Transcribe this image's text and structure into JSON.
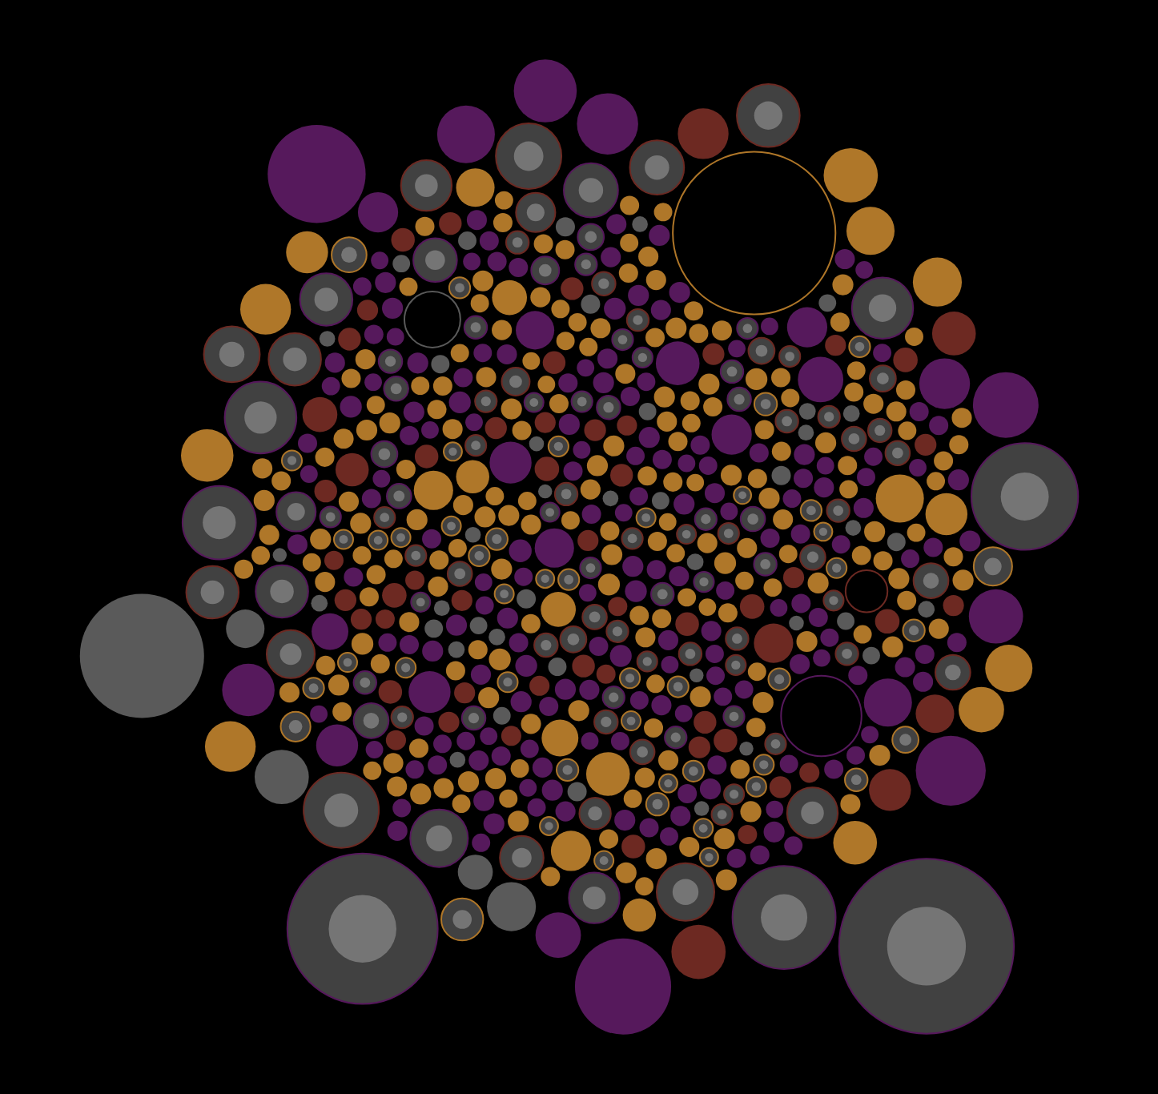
{
  "chart_data": {
    "type": "bubble",
    "tick_labels": false,
    "grid": false,
    "series": [
      {
        "color": "#7b2383",
        "marker": "circle",
        "sizes": [
          22,
          20,
          24,
          21,
          45,
          22,
          25,
          20,
          22,
          24,
          21,
          23,
          20,
          22,
          26,
          21,
          24,
          48,
          20,
          23,
          24,
          22,
          21,
          20,
          23,
          25,
          22,
          21,
          24,
          22,
          20,
          46,
          23,
          22,
          21,
          24,
          20,
          22,
          25,
          21,
          23,
          21,
          22,
          24,
          20,
          22,
          50,
          23,
          21,
          20,
          22,
          24,
          21,
          23,
          22,
          20,
          21,
          24,
          22,
          23,
          25,
          20,
          22,
          21,
          44,
          23,
          22,
          20,
          24,
          21,
          21,
          22,
          24,
          20,
          23,
          21,
          25,
          22,
          20,
          48,
          22,
          23,
          20,
          24,
          21,
          22,
          23,
          21,
          24,
          20,
          20,
          22,
          52,
          21,
          23,
          24,
          20,
          22,
          21,
          23,
          24,
          21,
          22,
          20,
          22,
          23,
          21,
          24,
          46,
          22,
          21,
          20,
          23,
          22,
          24,
          21,
          22,
          20,
          23,
          25,
          42,
          22,
          21,
          24,
          20,
          22,
          23,
          21,
          22,
          24,
          22,
          24,
          20,
          21,
          23,
          55,
          22,
          24,
          20,
          21,
          23,
          21,
          22,
          24,
          20,
          22,
          21,
          23,
          22,
          20,
          20,
          23,
          21,
          22,
          48,
          24,
          20,
          22,
          21,
          23,
          22,
          21,
          24,
          20,
          22,
          23,
          21,
          58,
          24,
          22,
          21,
          22,
          20,
          23,
          24,
          21,
          22,
          20,
          23,
          60,
          62,
          70,
          46,
          75,
          80,
          52,
          66,
          110,
          112,
          72
        ]
      },
      {
        "color": "#f9a93a",
        "marker": "circle",
        "sizes": [
          22,
          24,
          21,
          23,
          22,
          25,
          20,
          24,
          22,
          21,
          23,
          22,
          40,
          24,
          21,
          22,
          23,
          20,
          24,
          22,
          21,
          23,
          22,
          24,
          25,
          21,
          22,
          23,
          20,
          24,
          24,
          22,
          21,
          23,
          22,
          38,
          24,
          21,
          22,
          23,
          22,
          21,
          24,
          22,
          23,
          21,
          20,
          24,
          22,
          25,
          45,
          23,
          22,
          21,
          24,
          22,
          23,
          21,
          24,
          22,
          21,
          24,
          23,
          22,
          20,
          24,
          21,
          23,
          42,
          22,
          23,
          22,
          21,
          24,
          22,
          23,
          25,
          21,
          22,
          24,
          22,
          24,
          22,
          21,
          23,
          22,
          21,
          50,
          24,
          23,
          24,
          21,
          23,
          22,
          24,
          21,
          22,
          23,
          21,
          22,
          21,
          22,
          24,
          23,
          40,
          22,
          24,
          21,
          23,
          22,
          22,
          23,
          21,
          22,
          24,
          23,
          21,
          22,
          24,
          21,
          25,
          21,
          22,
          24,
          21,
          22,
          55,
          23,
          22,
          24,
          23,
          22,
          24,
          21,
          23,
          24,
          22,
          21,
          23,
          22,
          22,
          24,
          21,
          23,
          22,
          21,
          24,
          22,
          46,
          23,
          24,
          21,
          22,
          24,
          23,
          22,
          21,
          24,
          22,
          21,
          21,
          23,
          24,
          22,
          21,
          48,
          23,
          22,
          24,
          22,
          22,
          24,
          21,
          23,
          22,
          24,
          21,
          23,
          22,
          24,
          23,
          22,
          24,
          21,
          24,
          22,
          23,
          44,
          21,
          22,
          24,
          21,
          23,
          22,
          21,
          23,
          22,
          24,
          23,
          38,
          50,
          55,
          58,
          60,
          52,
          56,
          48,
          62,
          54,
          58
        ]
      },
      {
        "color": "#9b3b31",
        "marker": "circle",
        "sizes": [
          24,
          26,
          22,
          28,
          25,
          23,
          27,
          24,
          26,
          22,
          25,
          28,
          24,
          23,
          26,
          45,
          24,
          27,
          22,
          25,
          26,
          24,
          28,
          23,
          25,
          27,
          22,
          26,
          24,
          38,
          24,
          27,
          25,
          22,
          26,
          28,
          24,
          23,
          40,
          25,
          27,
          23,
          26,
          24,
          25,
          22,
          28,
          26,
          24,
          27,
          44,
          48,
          50,
          58,
          62
        ]
      },
      {
        "color": "#808080",
        "marker": "circle",
        "sizes": [
          18,
          20,
          16,
          19,
          22,
          17,
          20,
          18,
          21,
          19,
          20,
          16,
          22,
          18,
          19,
          21,
          17,
          20,
          18,
          22,
          19,
          21,
          18,
          20,
          16,
          22,
          19,
          18,
          21,
          20,
          17,
          19,
          22,
          18,
          20,
          21,
          19,
          16,
          20,
          18,
          40,
          44,
          56,
          62,
          142
        ]
      },
      {
        "color": "#9b3b31",
        "marker": "photo",
        "sizes": [
          24,
          26,
          22,
          28,
          25,
          30,
          24,
          27,
          23,
          26,
          28,
          24,
          26,
          32,
          25,
          23,
          27,
          24,
          29,
          26,
          25,
          28,
          24,
          26,
          30,
          23,
          27,
          25,
          24,
          28,
          26,
          24,
          36,
          25,
          27,
          23,
          28,
          26,
          24,
          30,
          40,
          45,
          50,
          55,
          58,
          60,
          62,
          66,
          75,
          86,
          40,
          58,
          60,
          64,
          72
        ]
      },
      {
        "color": "#7b2383",
        "marker": "photo",
        "sizes": [
          24,
          22,
          26,
          25,
          23,
          27,
          24,
          28,
          22,
          26,
          25,
          23,
          27,
          24,
          26,
          22,
          28,
          25,
          24,
          27,
          30,
          26,
          24,
          28,
          32,
          25,
          27,
          24,
          26,
          30,
          40,
          45,
          50,
          60,
          62,
          66,
          70,
          82,
          60,
          58,
          84,
          118,
          122,
          172,
          200
        ]
      },
      {
        "color": "#f9a93a",
        "marker": "photo",
        "sizes": [
          22,
          24,
          21,
          23,
          25,
          22,
          24,
          20,
          23,
          22,
          24,
          21,
          23,
          22,
          26,
          24,
          22,
          21,
          25,
          23,
          22,
          25,
          23,
          24,
          21,
          22,
          26,
          23,
          24,
          22,
          23,
          21,
          24,
          22,
          25,
          23,
          22,
          24,
          21,
          26,
          30,
          34,
          40,
          44,
          48
        ]
      },
      {
        "color": "#f9a93a",
        "marker": "ring",
        "sizes": [
          186
        ]
      },
      {
        "color": "#7b2383",
        "marker": "ring",
        "sizes": [
          92
        ]
      },
      {
        "color": "#9b3b31",
        "marker": "ring",
        "sizes": [
          48
        ]
      },
      {
        "color": "#808080",
        "marker": "ring",
        "sizes": [
          64
        ]
      }
    ]
  }
}
